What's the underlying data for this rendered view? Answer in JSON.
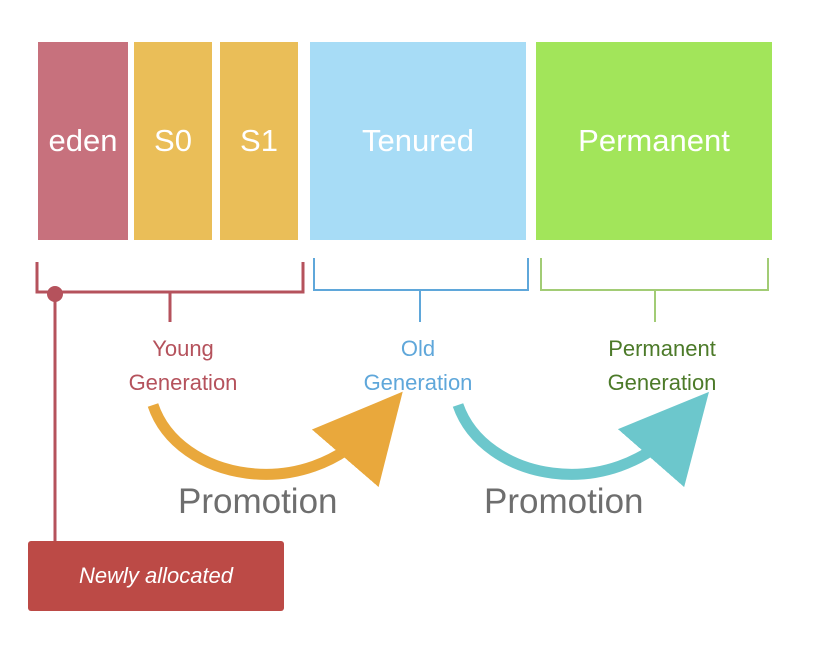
{
  "blocks": {
    "eden": "eden",
    "s0": "S0",
    "s1": "S1",
    "tenured": "Tenured",
    "permanent": "Permanent"
  },
  "generations": {
    "young": [
      "Young",
      "Generation"
    ],
    "old": [
      "Old",
      "Generation"
    ],
    "permanent": [
      "Permanent",
      "Generation"
    ]
  },
  "arrows": {
    "young_to_old": "Promotion",
    "old_to_permanent": "Promotion"
  },
  "newly_allocated": "Newly allocated",
  "colors": {
    "eden": "#c7717d",
    "survivor": "#eabe58",
    "tenured": "#a7dcf6",
    "permanent": "#a2e55a",
    "young_generation": "#b5525c",
    "old_generation": "#5fa7da",
    "permanent_generation": "#4c7a29",
    "promotion_arrow_1": "#e9a83c",
    "promotion_arrow_2": "#6cc7cc",
    "newly_allocated_box": "#bc4a46"
  }
}
